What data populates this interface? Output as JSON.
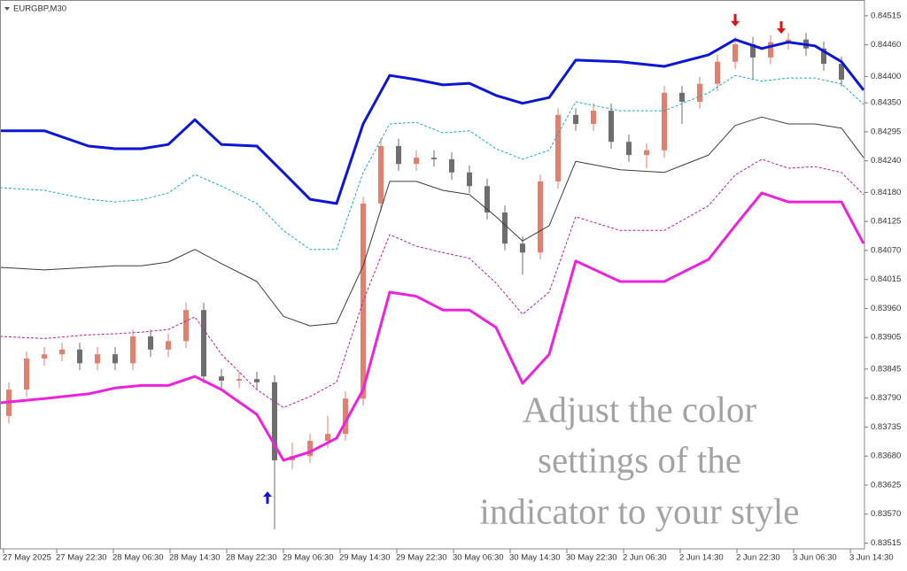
{
  "chart_data": {
    "type": "candlestick",
    "title": "EURGBP,M30",
    "annotation": [
      "Adjust the color",
      "settings of the",
      "indicator to your style"
    ],
    "xlim": [
      0,
      244
    ],
    "xticks": [
      {
        "value": 1,
        "label": "27 May 2025"
      },
      {
        "value": 16,
        "label": "27 May 22:30"
      },
      {
        "value": 32,
        "label": "28 May 06:30"
      },
      {
        "value": 48,
        "label": "28 May 14:30"
      },
      {
        "value": 64,
        "label": "28 May 22:30"
      },
      {
        "value": 80,
        "label": "29 May 06:30"
      },
      {
        "value": 96,
        "label": "29 May 14:30"
      },
      {
        "value": 112,
        "label": "29 May 22:30"
      },
      {
        "value": 128,
        "label": "30 May 06:30"
      },
      {
        "value": 144,
        "label": "30 May 14:30"
      },
      {
        "value": 160,
        "label": "30 May 22:30"
      },
      {
        "value": 176,
        "label": "2 Jun 06:30"
      },
      {
        "value": 192,
        "label": "2 Jun 14:30"
      },
      {
        "value": 208,
        "label": "2 Jun 22:30"
      },
      {
        "value": 224,
        "label": "3 Jun 06:30"
      },
      {
        "value": 240,
        "label": "3 Jun 14:30"
      }
    ],
    "ylim": [
      0.83504,
      0.84545
    ],
    "yticks": [
      {
        "value": 0.84515,
        "label": "0.84515"
      },
      {
        "value": 0.8446,
        "label": "0.84460"
      },
      {
        "value": 0.844,
        "label": "0.84400"
      },
      {
        "value": 0.8435,
        "label": "0.84350"
      },
      {
        "value": 0.84295,
        "label": "0.84295"
      },
      {
        "value": 0.8424,
        "label": "0.84240"
      },
      {
        "value": 0.8418,
        "label": "0.84180"
      },
      {
        "value": 0.84125,
        "label": "0.84125"
      },
      {
        "value": 0.8407,
        "label": "0.84070"
      },
      {
        "value": 0.84015,
        "label": "0.84015"
      },
      {
        "value": 0.8396,
        "label": "0.83960"
      },
      {
        "value": 0.83905,
        "label": "0.83905"
      },
      {
        "value": 0.83845,
        "label": "0.83845"
      },
      {
        "value": 0.8379,
        "label": "0.83790"
      },
      {
        "value": 0.83735,
        "label": "0.83735"
      },
      {
        "value": 0.8368,
        "label": "0.83680"
      },
      {
        "value": 0.83625,
        "label": "0.83625"
      },
      {
        "value": 0.8357,
        "label": "0.83570"
      },
      {
        "value": 0.83515,
        "label": "0.83515"
      }
    ],
    "candles": {
      "up_color": "#e0806f",
      "down_color": "#6e6e6e",
      "x": [
        2.5,
        7.5,
        12.5,
        17.5,
        22.5,
        27.5,
        32.5,
        37.5,
        42.5,
        47.5,
        52.5,
        57.5,
        62.5,
        67.5,
        72.5,
        77.5,
        82.5,
        87.5,
        92.5,
        97.5,
        102.5,
        107.5,
        112.5,
        117.5,
        122.5,
        127.5,
        132.5,
        137.5,
        142.5,
        147.5,
        152.5,
        157.5,
        162.5,
        167.5,
        172.5,
        177.5,
        182.5,
        187.5,
        192.5,
        197.5,
        202.5,
        207.5,
        212.5,
        217.5,
        222.5,
        227.5,
        232.5,
        237.5
      ],
      "open": [
        0.83756,
        0.83806,
        0.83865,
        0.83873,
        0.83882,
        0.83856,
        0.83873,
        0.83856,
        0.83907,
        0.83882,
        0.83898,
        0.83957,
        0.83831,
        0.83823,
        0.83826,
        0.8382,
        0.83672,
        0.8368,
        0.83709,
        0.83722,
        0.83789,
        0.84159,
        0.84268,
        0.84234,
        0.84246,
        0.84243,
        0.84218,
        0.84192,
        0.84142,
        0.84083,
        0.84066,
        0.84201,
        0.84327,
        0.8431,
        0.84335,
        0.84276,
        0.84251,
        0.8426,
        0.84369,
        0.84352,
        0.84386,
        0.84428,
        0.84461,
        0.84436,
        0.84465,
        0.8447,
        0.84453,
        0.84424
      ],
      "high": [
        0.8382,
        0.83878,
        0.83887,
        0.83895,
        0.83895,
        0.83887,
        0.83887,
        0.8392,
        0.8392,
        0.83912,
        0.83971,
        0.83971,
        0.83845,
        0.8384,
        0.8384,
        0.83833,
        0.83705,
        0.83722,
        0.83756,
        0.83803,
        0.84172,
        0.84282,
        0.84282,
        0.8426,
        0.8426,
        0.84256,
        0.84231,
        0.84206,
        0.84155,
        0.84097,
        0.84214,
        0.8434,
        0.8434,
        0.84349,
        0.84349,
        0.8429,
        0.84273,
        0.84382,
        0.84382,
        0.84399,
        0.84441,
        0.84475,
        0.84475,
        0.84478,
        0.84483,
        0.84483,
        0.84466,
        0.84438
      ],
      "low": [
        0.83742,
        0.83793,
        0.83851,
        0.8386,
        0.83843,
        0.83843,
        0.83843,
        0.83843,
        0.83868,
        0.83868,
        0.83885,
        0.83818,
        0.83809,
        0.83809,
        0.83806,
        0.83541,
        0.83655,
        0.83667,
        0.83695,
        0.83709,
        0.83776,
        0.84145,
        0.84221,
        0.84221,
        0.84229,
        0.84204,
        0.84179,
        0.84129,
        0.8407,
        0.84024,
        0.84053,
        0.84187,
        0.84297,
        0.84297,
        0.84263,
        0.84238,
        0.84226,
        0.84246,
        0.8431,
        0.84339,
        0.84372,
        0.84414,
        0.84394,
        0.84423,
        0.84451,
        0.84439,
        0.84411,
        0.84381
      ],
      "close": [
        0.83806,
        0.83865,
        0.83873,
        0.83882,
        0.83856,
        0.83873,
        0.83856,
        0.83907,
        0.83882,
        0.83898,
        0.83957,
        0.83831,
        0.83823,
        0.83826,
        0.8382,
        0.83672,
        0.8368,
        0.83709,
        0.83722,
        0.83789,
        0.84159,
        0.84268,
        0.84234,
        0.84246,
        0.84243,
        0.84218,
        0.84192,
        0.84142,
        0.84083,
        0.84066,
        0.84201,
        0.84327,
        0.8431,
        0.84335,
        0.84276,
        0.84251,
        0.8426,
        0.84369,
        0.84352,
        0.84386,
        0.84428,
        0.84461,
        0.84436,
        0.84465,
        0.8447,
        0.84453,
        0.84424,
        0.84394
      ]
    },
    "bands": {
      "x": [
        0,
        12.5,
        25,
        32.5,
        40,
        47.5,
        55,
        62.5,
        72.5,
        80,
        87.5,
        95,
        102.5,
        110,
        117.5,
        125,
        132.5,
        140,
        147.5,
        155,
        162.5,
        175,
        187.5,
        200,
        207.5,
        215,
        222.5,
        230,
        237.5,
        243.75
      ],
      "series": [
        {
          "color": "#0b16d6",
          "style": "solid",
          "width": 3,
          "values": [
            0.84297,
            0.84297,
            0.84268,
            0.84263,
            0.84263,
            0.84271,
            0.84318,
            0.84271,
            0.84268,
            0.84218,
            0.84167,
            0.84159,
            0.8431,
            0.84402,
            0.84394,
            0.84384,
            0.84387,
            0.84364,
            0.84349,
            0.8436,
            0.84431,
            0.84428,
            0.84419,
            0.84441,
            0.8447,
            0.84453,
            0.84465,
            0.84458,
            0.84428,
            0.84374
          ]
        },
        {
          "color": "#1fa9c6",
          "style": "dashed",
          "width": 1,
          "values": [
            0.84189,
            0.84184,
            0.84167,
            0.84162,
            0.84166,
            0.84179,
            0.84214,
            0.84192,
            0.84159,
            0.84108,
            0.84072,
            0.84072,
            0.84218,
            0.8431,
            0.84313,
            0.84293,
            0.84297,
            0.84263,
            0.84243,
            0.8426,
            0.84352,
            0.84335,
            0.84335,
            0.84369,
            0.84402,
            0.84391,
            0.84397,
            0.84397,
            0.84386,
            0.84347
          ]
        },
        {
          "color": "#3c3c3c",
          "style": "solid",
          "width": 1,
          "values": [
            0.84038,
            0.84033,
            0.84038,
            0.84041,
            0.84041,
            0.84048,
            0.84072,
            0.84045,
            0.84011,
            0.83945,
            0.83927,
            0.83932,
            0.84041,
            0.84201,
            0.84201,
            0.84184,
            0.84176,
            0.84134,
            0.84088,
            0.84117,
            0.84239,
            0.84223,
            0.84218,
            0.84251,
            0.84307,
            0.84323,
            0.8431,
            0.8431,
            0.84302,
            0.84246
          ]
        },
        {
          "color": "#b8209a",
          "style": "dashed",
          "width": 1,
          "values": [
            0.83907,
            0.83903,
            0.8391,
            0.83912,
            0.83915,
            0.8392,
            0.83944,
            0.83873,
            0.83806,
            0.83772,
            0.83793,
            0.8382,
            0.83974,
            0.841,
            0.84078,
            0.84066,
            0.84055,
            0.84008,
            0.83949,
            0.83991,
            0.84134,
            0.84108,
            0.84108,
            0.84155,
            0.84213,
            0.84243,
            0.84226,
            0.84229,
            0.84218,
            0.84176
          ]
        },
        {
          "color": "#ee22dd",
          "style": "solid",
          "width": 3,
          "values": [
            0.83781,
            0.83789,
            0.83798,
            0.83809,
            0.83814,
            0.83814,
            0.83831,
            0.83806,
            0.83759,
            0.83672,
            0.83688,
            0.83714,
            0.83806,
            0.83991,
            0.83983,
            0.83957,
            0.83957,
            0.83924,
            0.83818,
            0.83873,
            0.8405,
            0.84011,
            0.84011,
            0.84053,
            0.84117,
            0.84179,
            0.84162,
            0.84162,
            0.84162,
            0.84083
          ]
        }
      ]
    },
    "up_arrows": {
      "color": "#1010e0",
      "x": [
        75.5
      ],
      "values": [
        0.83613
      ]
    },
    "down_arrows": {
      "color": "#e01010",
      "x": [
        207.5,
        220.5
      ],
      "values": [
        0.84495,
        0.84481
      ]
    }
  }
}
